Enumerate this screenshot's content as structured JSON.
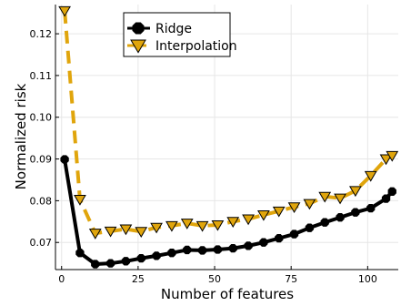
{
  "chart_data": {
    "type": "line",
    "xlabel": "Number of features",
    "ylabel": "Normalized risk",
    "xlim": [
      -2,
      110
    ],
    "ylim": [
      0.0635,
      0.127
    ],
    "xticks": [
      0,
      25,
      50,
      75,
      100
    ],
    "yticks": [
      0.07,
      0.08,
      0.09,
      0.1,
      0.11,
      0.12
    ],
    "ytick_labels": [
      "0.07",
      "0.08",
      "0.09",
      "0.10",
      "0.11",
      "0.12"
    ],
    "grid": true,
    "legend_position": "top-center",
    "series": [
      {
        "name": "Interpolation",
        "color": "#E0A50C",
        "marker": "triangle-down",
        "line_style": "dashed",
        "x": [
          1,
          6,
          11,
          16,
          21,
          26,
          31,
          36,
          41,
          46,
          51,
          56,
          61,
          66,
          71,
          76,
          81,
          86,
          91,
          96,
          101,
          106,
          108
        ],
        "y": [
          0.1255,
          0.0803,
          0.0722,
          0.0727,
          0.0732,
          0.0726,
          0.0736,
          0.074,
          0.0746,
          0.074,
          0.0742,
          0.075,
          0.0756,
          0.0766,
          0.0775,
          0.0785,
          0.0793,
          0.081,
          0.0806,
          0.0824,
          0.086,
          0.09,
          0.0908
        ]
      },
      {
        "name": "Ridge",
        "color": "#000000",
        "marker": "octagon",
        "line_style": "solid",
        "x": [
          1,
          6,
          11,
          16,
          21,
          26,
          31,
          36,
          41,
          46,
          51,
          56,
          61,
          66,
          71,
          76,
          81,
          86,
          91,
          96,
          101,
          106,
          108
        ],
        "y": [
          0.0899,
          0.0675,
          0.0648,
          0.065,
          0.0655,
          0.0662,
          0.0668,
          0.0675,
          0.0682,
          0.0681,
          0.0683,
          0.0686,
          0.0692,
          0.07,
          0.071,
          0.072,
          0.0735,
          0.0748,
          0.076,
          0.0772,
          0.0782,
          0.0805,
          0.0822
        ]
      }
    ]
  }
}
